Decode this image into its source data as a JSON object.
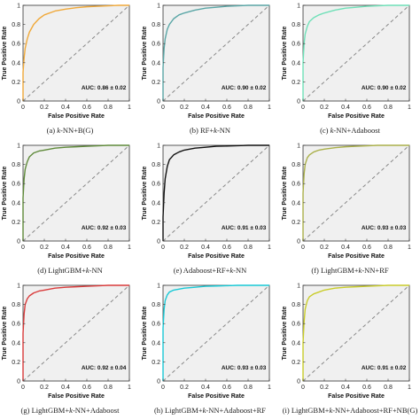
{
  "chart_data": [
    {
      "type": "line",
      "caption": "(a) k-NN+B(G)",
      "caption_parts": [
        "(a)  ",
        "k",
        "-NN+B(G)"
      ],
      "color": "#f0a93a",
      "auc": "AUC: 0.86 ± 0.02",
      "xlabel": "False Positive Rate",
      "ylabel": "True Positive Rate",
      "xlim": [
        0,
        1
      ],
      "ylim": [
        0,
        1
      ],
      "xticks": [
        "0",
        "0.2",
        "0.4",
        "0.6",
        "0.8",
        "1"
      ],
      "yticks": [
        "0",
        "0.2",
        "0.4",
        "0.6",
        "0.8",
        "1"
      ],
      "grid": false,
      "background": "#f0f0f0",
      "diagonal": true,
      "series": [
        {
          "x": [
            0,
            0.0,
            0.01,
            0.02,
            0.04,
            0.06,
            0.1,
            0.15,
            0.2,
            0.3,
            0.4,
            0.5,
            0.6,
            0.7,
            0.8,
            0.9,
            1.0
          ],
          "y": [
            0,
            0.3,
            0.45,
            0.55,
            0.65,
            0.72,
            0.8,
            0.86,
            0.9,
            0.94,
            0.96,
            0.975,
            0.985,
            0.99,
            0.995,
            1.0,
            1.0
          ]
        }
      ]
    },
    {
      "type": "line",
      "caption": "(b) RF+k-NN",
      "caption_parts": [
        "(b)  RF+",
        "k",
        "-NN"
      ],
      "color": "#5aa6a6",
      "auc": "AUC: 0.90 ± 0.02",
      "xlabel": "False Positive Rate",
      "ylabel": "True Positive Rate",
      "xlim": [
        0,
        1
      ],
      "ylim": [
        0,
        1
      ],
      "xticks": [
        "0",
        "0.2",
        "0.4",
        "0.6",
        "0.8",
        "1"
      ],
      "yticks": [
        "0",
        "0.2",
        "0.4",
        "0.6",
        "0.8",
        "1"
      ],
      "grid": false,
      "background": "#f0f0f0",
      "diagonal": true,
      "series": [
        {
          "x": [
            0,
            0.0,
            0.01,
            0.02,
            0.04,
            0.06,
            0.1,
            0.15,
            0.2,
            0.3,
            0.4,
            0.5,
            0.6,
            0.7,
            0.8,
            0.9,
            1.0
          ],
          "y": [
            0,
            0.35,
            0.55,
            0.65,
            0.75,
            0.8,
            0.86,
            0.9,
            0.92,
            0.95,
            0.97,
            0.98,
            0.99,
            0.995,
            1.0,
            1.0,
            1.0
          ]
        }
      ]
    },
    {
      "type": "line",
      "caption": "(c) k-NN+Adaboost",
      "caption_parts": [
        "(c)  ",
        "k",
        "-NN+Adaboost"
      ],
      "color": "#6fe0b8",
      "auc": "AUC: 0.90 ± 0.02",
      "xlabel": "False Positive Rate",
      "ylabel": "True Positive Rate",
      "xlim": [
        0,
        1
      ],
      "ylim": [
        0,
        1
      ],
      "xticks": [
        "0",
        "0.2",
        "0.4",
        "0.6",
        "0.8",
        "1"
      ],
      "yticks": [
        "0",
        "0.2",
        "0.4",
        "0.6",
        "0.8",
        "1"
      ],
      "grid": false,
      "background": "#f0f0f0",
      "diagonal": true,
      "series": [
        {
          "x": [
            0,
            0.0,
            0.01,
            0.02,
            0.04,
            0.06,
            0.1,
            0.15,
            0.2,
            0.3,
            0.4,
            0.5,
            0.6,
            0.7,
            0.8,
            0.9,
            1.0
          ],
          "y": [
            0,
            0.4,
            0.6,
            0.7,
            0.78,
            0.83,
            0.87,
            0.9,
            0.92,
            0.95,
            0.97,
            0.98,
            0.99,
            0.995,
            1.0,
            1.0,
            1.0
          ]
        }
      ]
    },
    {
      "type": "line",
      "caption": "(d) LightGBM+k-NN",
      "caption_parts": [
        "(d)  LightGBM+",
        "k",
        "-NN"
      ],
      "color": "#5f8a3a",
      "auc": "AUC: 0.92 ± 0.03",
      "xlabel": "False Positive Rate",
      "ylabel": "True Positive Rate",
      "xlim": [
        0,
        1
      ],
      "ylim": [
        0,
        1
      ],
      "xticks": [
        "0",
        "0.2",
        "0.4",
        "0.6",
        "0.8",
        "1"
      ],
      "yticks": [
        "0",
        "0.2",
        "0.4",
        "0.6",
        "0.8",
        "1"
      ],
      "grid": false,
      "background": "#f0f0f0",
      "diagonal": true,
      "series": [
        {
          "x": [
            0,
            0.0,
            0.01,
            0.02,
            0.04,
            0.06,
            0.1,
            0.15,
            0.2,
            0.3,
            0.4,
            0.5,
            0.6,
            0.7,
            0.8,
            0.9,
            1.0
          ],
          "y": [
            0,
            0.45,
            0.65,
            0.75,
            0.83,
            0.88,
            0.92,
            0.94,
            0.95,
            0.97,
            0.98,
            0.985,
            0.99,
            0.995,
            1.0,
            1.0,
            1.0
          ]
        }
      ]
    },
    {
      "type": "line",
      "caption": "(e) Adaboost+RF+k-NN",
      "caption_parts": [
        "(e)  Adaboost+RF+",
        "k",
        "-NN"
      ],
      "color": "#111111",
      "auc": "AUC: 0.91 ± 0.03",
      "xlabel": "False Positive Rate",
      "ylabel": "True Positive Rate",
      "xlim": [
        0,
        1
      ],
      "ylim": [
        0,
        1
      ],
      "xticks": [
        "0",
        "0.2",
        "0.4",
        "0.6",
        "0.8",
        "1"
      ],
      "yticks": [
        "0",
        "0.2",
        "0.4",
        "0.6",
        "0.8",
        "1"
      ],
      "grid": false,
      "background": "#f0f0f0",
      "diagonal": true,
      "series": [
        {
          "x": [
            0,
            0.0,
            0.01,
            0.02,
            0.04,
            0.06,
            0.1,
            0.15,
            0.2,
            0.3,
            0.4,
            0.5,
            0.6,
            0.7,
            0.8,
            0.9,
            1.0
          ],
          "y": [
            0,
            0.25,
            0.5,
            0.65,
            0.78,
            0.85,
            0.9,
            0.93,
            0.95,
            0.97,
            0.98,
            0.99,
            0.993,
            0.996,
            1.0,
            1.0,
            1.0
          ]
        }
      ]
    },
    {
      "type": "line",
      "caption": "(f) LightGBM+k-NN+RF",
      "caption_parts": [
        "(f)  LightGBM+",
        "k",
        "-NN+RF"
      ],
      "color": "#aab04a",
      "auc": "AUC: 0.93 ± 0.03",
      "xlabel": "False Positive Rate",
      "ylabel": "True Positive Rate",
      "xlim": [
        0,
        1
      ],
      "ylim": [
        0,
        1
      ],
      "xticks": [
        "0",
        "0.2",
        "0.4",
        "0.6",
        "0.8",
        "1"
      ],
      "yticks": [
        "0",
        "0.2",
        "0.4",
        "0.6",
        "0.8",
        "1"
      ],
      "grid": false,
      "background": "#f0f0f0",
      "diagonal": true,
      "series": [
        {
          "x": [
            0,
            0.0,
            0.01,
            0.02,
            0.04,
            0.06,
            0.1,
            0.15,
            0.2,
            0.3,
            0.4,
            0.5,
            0.6,
            0.7,
            0.8,
            0.9,
            1.0
          ],
          "y": [
            0,
            0.5,
            0.7,
            0.8,
            0.87,
            0.9,
            0.93,
            0.95,
            0.96,
            0.975,
            0.985,
            0.99,
            0.995,
            1.0,
            1.0,
            1.0,
            1.0
          ]
        }
      ]
    },
    {
      "type": "line",
      "caption": "(g) LightGBM+k-NN+Adaboost",
      "caption_parts": [
        "(g)  LightGBM+",
        "k",
        "-NN+Adaboost"
      ],
      "color": "#d93b3b",
      "auc": "AUC: 0.92 ± 0.04",
      "xlabel": "False Positive Rate",
      "ylabel": "True Positive Rate",
      "xlim": [
        0,
        1
      ],
      "ylim": [
        0,
        1
      ],
      "xticks": [
        "0",
        "0.2",
        "0.4",
        "0.6",
        "0.8",
        "1"
      ],
      "yticks": [
        "0",
        "0.2",
        "0.4",
        "0.6",
        "0.8",
        "1"
      ],
      "grid": false,
      "background": "#f0f0f0",
      "diagonal": true,
      "series": [
        {
          "x": [
            0,
            0.0,
            0.01,
            0.02,
            0.04,
            0.06,
            0.1,
            0.15,
            0.2,
            0.3,
            0.4,
            0.5,
            0.6,
            0.7,
            0.8,
            0.9,
            1.0
          ],
          "y": [
            0,
            0.5,
            0.7,
            0.8,
            0.86,
            0.89,
            0.92,
            0.94,
            0.95,
            0.97,
            0.98,
            0.985,
            0.99,
            0.995,
            1.0,
            1.0,
            1.0
          ]
        }
      ]
    },
    {
      "type": "line",
      "caption": "(h) LightGBM+k-NN+Adaboost+RF",
      "caption_parts": [
        "(h)  LightGBM+",
        "k",
        "-NN+Adaboost+RF"
      ],
      "color": "#19c9d6",
      "auc": "AUC: 0.93 ± 0.03",
      "xlabel": "False Positive Rate",
      "ylabel": "True Positive Rate",
      "xlim": [
        0,
        1
      ],
      "ylim": [
        0,
        1
      ],
      "xticks": [
        "0",
        "0.2",
        "0.4",
        "0.6",
        "0.8",
        "1"
      ],
      "yticks": [
        "0",
        "0.2",
        "0.4",
        "0.6",
        "0.8",
        "1"
      ],
      "grid": false,
      "background": "#f0f0f0",
      "diagonal": true,
      "series": [
        {
          "x": [
            0,
            0.0,
            0.01,
            0.02,
            0.04,
            0.06,
            0.1,
            0.15,
            0.2,
            0.3,
            0.4,
            0.5,
            0.6,
            0.7,
            0.8,
            0.9,
            1.0
          ],
          "y": [
            0,
            0.55,
            0.75,
            0.84,
            0.9,
            0.93,
            0.95,
            0.96,
            0.97,
            0.98,
            0.99,
            0.993,
            0.996,
            1.0,
            1.0,
            1.0,
            1.0
          ]
        }
      ]
    },
    {
      "type": "line",
      "caption": "(i) LightGBM+k-NN+Adaboost+RF+NB(G)",
      "caption_parts": [
        "(i)  LightGBM+",
        "k",
        "-NN+Adaboost+RF+NB(G)"
      ],
      "color": "#c9cc2a",
      "auc": "AUC: 0.91 ± 0.02",
      "xlabel": "False Positive Rate",
      "ylabel": "True Positive Rate",
      "xlim": [
        0,
        1
      ],
      "ylim": [
        0,
        1
      ],
      "xticks": [
        "0",
        "0.2",
        "0.4",
        "0.6",
        "0.8",
        "1"
      ],
      "yticks": [
        "0",
        "0.2",
        "0.4",
        "0.6",
        "0.8",
        "1"
      ],
      "grid": false,
      "background": "#f0f0f0",
      "diagonal": true,
      "series": [
        {
          "x": [
            0,
            0.0,
            0.01,
            0.02,
            0.04,
            0.06,
            0.1,
            0.15,
            0.2,
            0.3,
            0.4,
            0.5,
            0.6,
            0.7,
            0.8,
            0.9,
            1.0
          ],
          "y": [
            0,
            0.4,
            0.62,
            0.75,
            0.84,
            0.88,
            0.91,
            0.93,
            0.95,
            0.97,
            0.98,
            0.985,
            0.99,
            0.995,
            1.0,
            1.0,
            1.0
          ]
        }
      ]
    }
  ]
}
